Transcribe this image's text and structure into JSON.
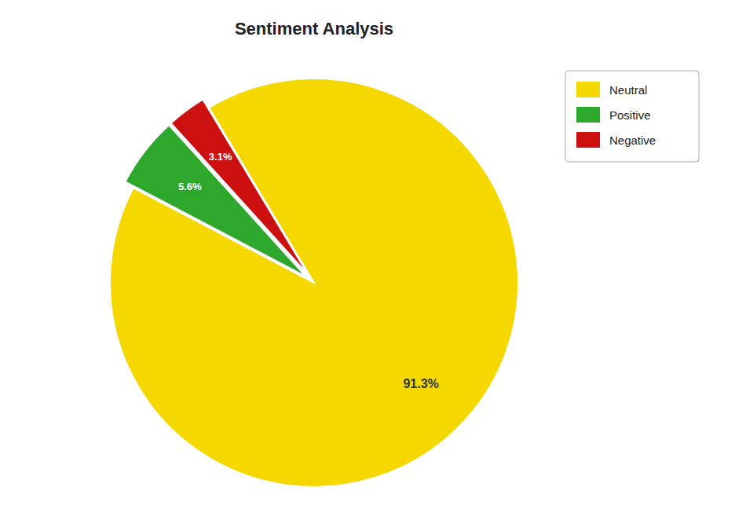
{
  "chart_data": {
    "type": "pie",
    "title": "Sentiment Analysis",
    "categories": [
      "Neutral",
      "Positive",
      "Negative"
    ],
    "values": [
      91.3,
      5.6,
      3.1
    ],
    "value_labels": [
      "91.3%",
      "5.6%",
      "3.1%"
    ],
    "colors": [
      "#f5d800",
      "#2da82d",
      "#cc1010"
    ],
    "data_labels": true,
    "legend": "right"
  }
}
